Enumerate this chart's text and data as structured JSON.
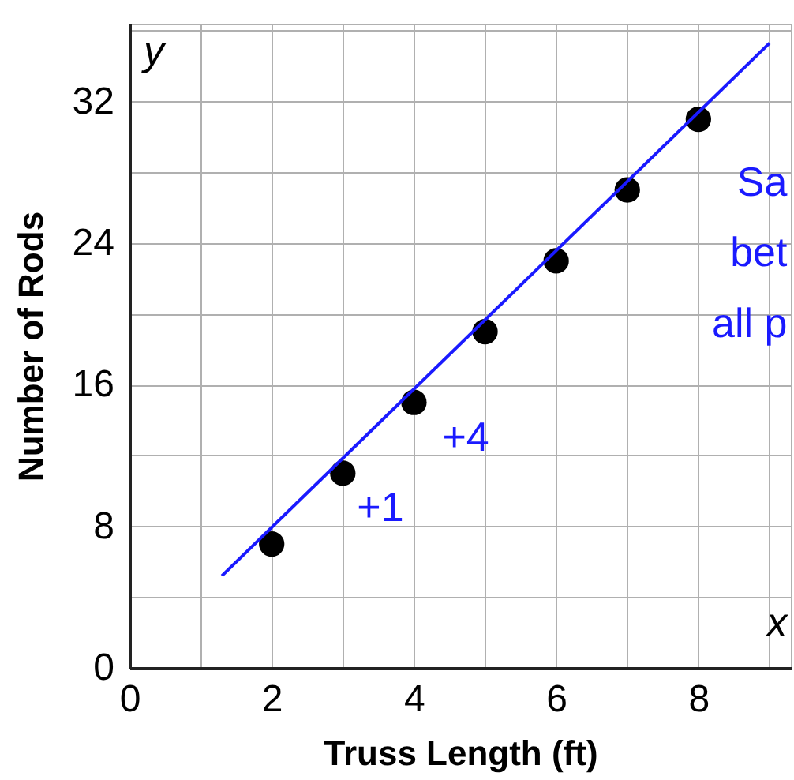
{
  "chart_data": {
    "type": "scatter",
    "xlabel": "Truss Length (ft)",
    "ylabel": "Number of Rods",
    "xlim": [
      0,
      9.3
    ],
    "ylim": [
      0,
      36.4
    ],
    "xticks": [
      0,
      {
        "value": 1,
        "label": null
      },
      2,
      {
        "value": 3,
        "label": null
      },
      4,
      {
        "value": 5,
        "label": null
      },
      6,
      {
        "value": 7,
        "label": null
      },
      8,
      {
        "value": 9,
        "label": null
      }
    ],
    "yticks": [
      0,
      {
        "value": 4,
        "label": null
      },
      8,
      {
        "value": 12,
        "label": null
      },
      16,
      {
        "value": 20,
        "label": null
      },
      24,
      {
        "value": 28,
        "label": null
      },
      32,
      {
        "value": 36,
        "label": null
      }
    ],
    "grid": true,
    "series": [
      {
        "marker": "circle",
        "color": "#000000",
        "x": [
          2,
          3,
          4,
          5,
          6,
          7,
          8
        ],
        "values": [
          7,
          11,
          15,
          19,
          23,
          27,
          31
        ]
      },
      {
        "type": "line",
        "color": "#1a1aff",
        "line_style": "solid",
        "x": [
          1.3,
          9.0
        ],
        "values": [
          5.2,
          35.3
        ]
      }
    ],
    "annotations": [
      "y",
      "x",
      "Sa",
      "bet",
      "all p",
      "+1",
      "+4"
    ]
  }
}
